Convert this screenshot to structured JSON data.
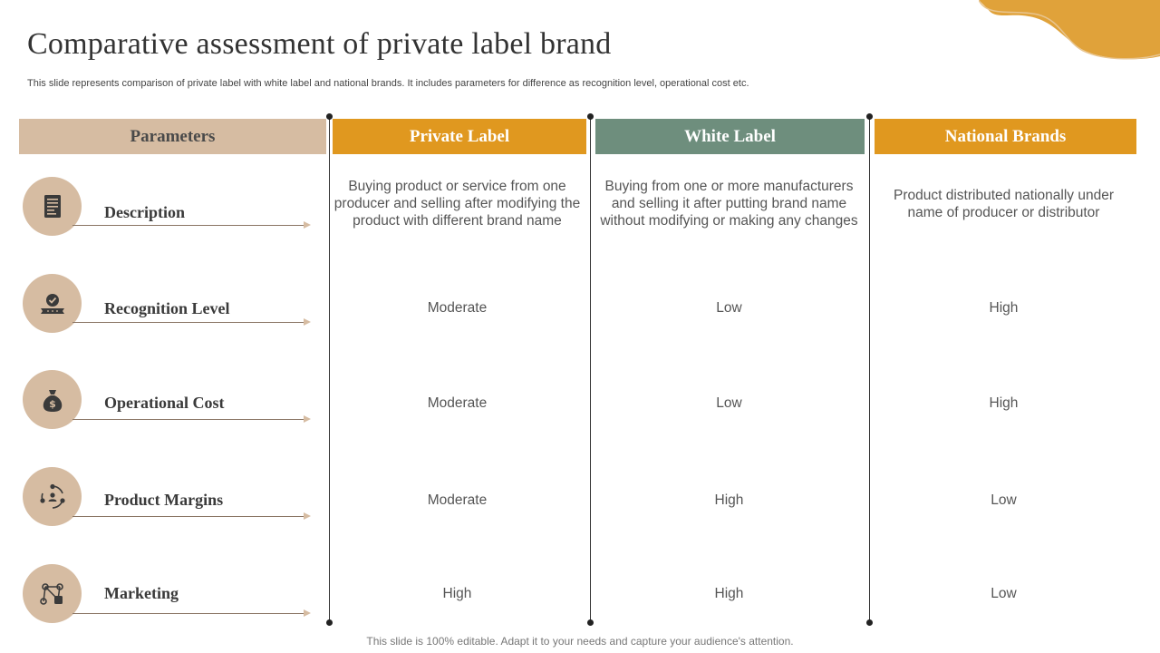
{
  "slide": {
    "title": "Comparative assessment of private label brand",
    "subtitle": "This slide represents comparison of private label with white label and national brands. It includes parameters for difference as recognition level, operational cost etc.",
    "footer": "This slide is 100% editable. Adapt it to your needs and capture your audience's attention."
  },
  "headers": {
    "parameters": "Parameters",
    "private_label": "Private Label",
    "white_label": "White Label",
    "national_brands": "National Brands"
  },
  "colors": {
    "tan": "#d6bca2",
    "orange": "#e0981f",
    "green": "#6e8e7d"
  },
  "rows": [
    {
      "parameter": "Description",
      "icon": "document-icon",
      "private_label": "Buying product or service from one producer and selling after modifying the product with different brand name",
      "white_label": "Buying from one or more manufacturers  and selling it after putting brand name without modifying or making any changes",
      "national_brands": "Product distributed nationally  under name of producer or distributor"
    },
    {
      "parameter": "Recognition Level",
      "icon": "award-badge-icon",
      "private_label": "Moderate",
      "white_label": "Low",
      "national_brands": "High"
    },
    {
      "parameter": "Operational Cost",
      "icon": "money-bag-icon",
      "private_label": "Moderate",
      "white_label": "Low",
      "national_brands": "High"
    },
    {
      "parameter": "Product Margins",
      "icon": "cycle-people-icon",
      "private_label": "Moderate",
      "white_label": "High",
      "national_brands": "Low"
    },
    {
      "parameter": "Marketing",
      "icon": "network-icon",
      "private_label": "High",
      "white_label": "High",
      "national_brands": "Low"
    }
  ]
}
